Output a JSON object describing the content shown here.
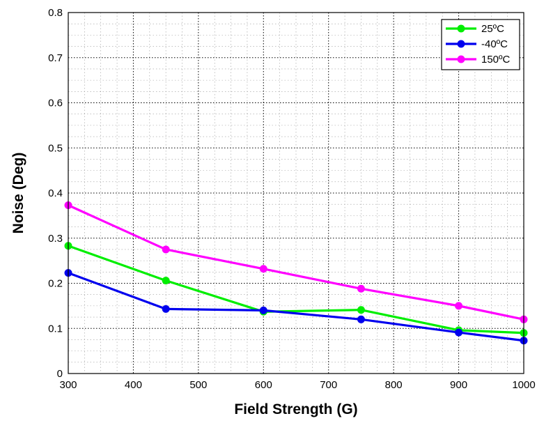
{
  "chart_data": {
    "type": "line",
    "title": "",
    "xlabel": "Field Strength (G)",
    "ylabel": "Noise (Deg)",
    "xlim": [
      300,
      1000
    ],
    "ylim": [
      0,
      0.8
    ],
    "x_ticks": [
      "300",
      "400",
      "500",
      "600",
      "700",
      "800",
      "900",
      "1000"
    ],
    "y_ticks": [
      "0",
      "0.1",
      "0.2",
      "0.3",
      "0.4",
      "0.5",
      "0.6",
      "0.7",
      "0.8"
    ],
    "grid": true,
    "legend_position": "top-right",
    "x": [
      300,
      450,
      600,
      750,
      900,
      1000
    ],
    "series": [
      {
        "name": "25ºC",
        "color": "#00ee00",
        "values": [
          0.283,
          0.206,
          0.137,
          0.141,
          0.096,
          0.09
        ]
      },
      {
        "name": "-40ºC",
        "color": "#0000ee",
        "values": [
          0.223,
          0.143,
          0.14,
          0.12,
          0.091,
          0.073
        ]
      },
      {
        "name": "150ºC",
        "color": "#ff00ff",
        "values": [
          0.373,
          0.275,
          0.232,
          0.188,
          0.15,
          0.12
        ]
      }
    ]
  }
}
